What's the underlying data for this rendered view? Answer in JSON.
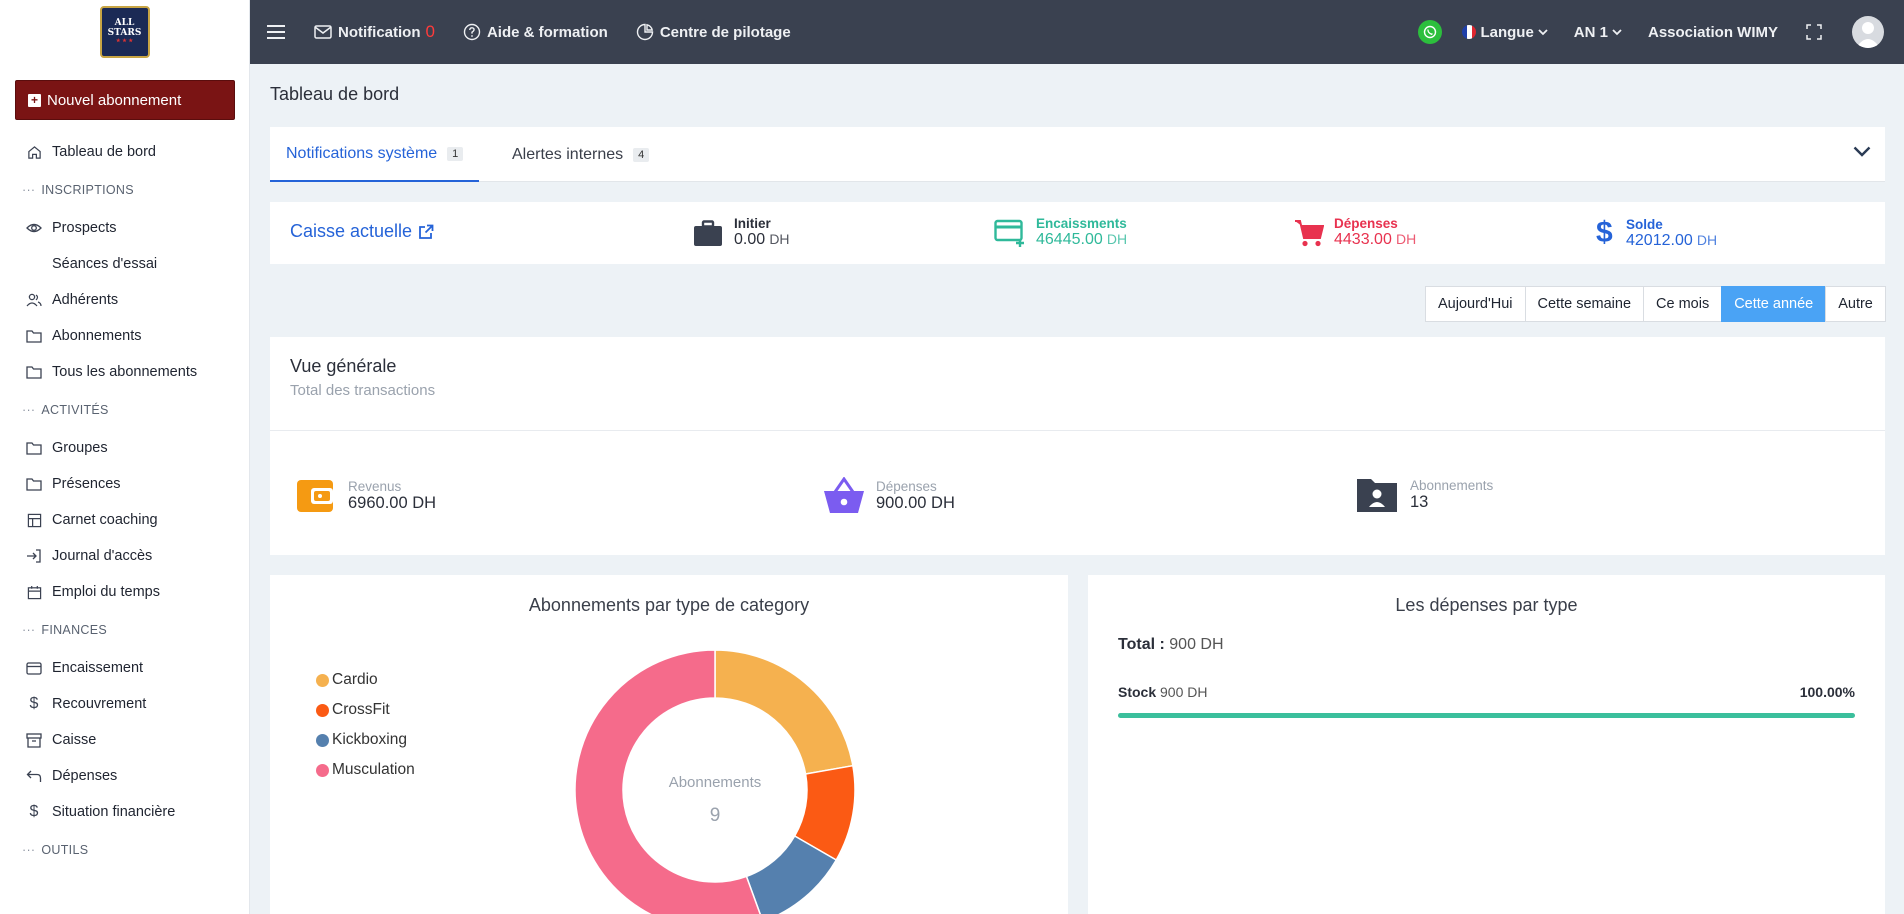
{
  "sidebar": {
    "logo_text": "ALL STARS",
    "new_subscription": "Nouvel abonnement",
    "items": {
      "dashboard": "Tableau de bord",
      "section_inscriptions": "INSCRIPTIONS",
      "prospects": "Prospects",
      "trial_sessions": "Séances d'essai",
      "members": "Adhérents",
      "subscriptions": "Abonnements",
      "all_subscriptions": "Tous les abonnements",
      "section_activities": "ACTIVITÉS",
      "groups": "Groupes",
      "attendance": "Présences",
      "coaching_book": "Carnet coaching",
      "access_log": "Journal d'accès",
      "schedule": "Emploi du temps",
      "section_finances": "FINANCES",
      "collection": "Encaissement",
      "recovery": "Recouvrement",
      "cash_register": "Caisse",
      "expenses": "Dépenses",
      "financial_situation": "Situation financière",
      "section_tools": "OUTILS"
    }
  },
  "topbar": {
    "notification_label": "Notification",
    "notification_count": "0",
    "help_label": "Aide & formation",
    "pilot_label": "Centre de pilotage",
    "language_label": "Langue",
    "year_label": "AN 1",
    "association_label": "Association WIMY"
  },
  "main": {
    "page_title": "Tableau de bord",
    "tabs": [
      {
        "label": "Notifications système",
        "badge": "1"
      },
      {
        "label": "Alertes internes",
        "badge": "4"
      }
    ],
    "caisse": {
      "title": "Caisse actuelle",
      "initial_label": "Initier",
      "initial_value": "0.00",
      "initial_unit": "DH",
      "income_label": "Encaissments",
      "income_value": "46445.00",
      "income_unit": "DH",
      "expense_label": "Dépenses",
      "expense_value": "4433.00",
      "expense_unit": "DH",
      "balance_label": "Solde",
      "balance_value": "42012.00",
      "balance_unit": "DH"
    },
    "periods": [
      "Aujourd'Hui",
      "Cette semaine",
      "Ce mois",
      "Cette année",
      "Autre"
    ],
    "active_period": "Cette année",
    "overview": {
      "title": "Vue générale",
      "subtitle": "Total des transactions",
      "revenue_label": "Revenus",
      "revenue_value": "6960.00 DH",
      "expenses_label": "Dépenses",
      "expenses_value": "900.00 DH",
      "subs_label": "Abonnements",
      "subs_value": "13"
    },
    "donut": {
      "title": "Abonnements par type de category",
      "center_label": "Abonnements",
      "center_value": "9"
    },
    "expenses_card": {
      "title": "Les dépenses par type",
      "total_label": "Total :",
      "total_value": "900 DH",
      "row_label": "Stock",
      "row_value": "900 DH",
      "row_pct": "100.00%",
      "row_fraction": 1.0
    }
  },
  "colors": {
    "accent": "#2563d8",
    "topbar": "#3a4150",
    "new_button": "#7a1414",
    "income": "#2fb99a",
    "expense": "#e8324f",
    "active_period": "#4aa3f5"
  },
  "chart_data": {
    "type": "pie",
    "title": "Abonnements par type de category",
    "categories": [
      "Cardio",
      "CrossFit",
      "Kickboxing",
      "Musculation"
    ],
    "values": [
      2,
      1,
      1,
      5
    ],
    "colors": [
      "#f5b14f",
      "#fb5a14",
      "#5580ae",
      "#f56b8b"
    ],
    "center_label": "Abonnements",
    "center_value": 9,
    "legend": "left"
  }
}
